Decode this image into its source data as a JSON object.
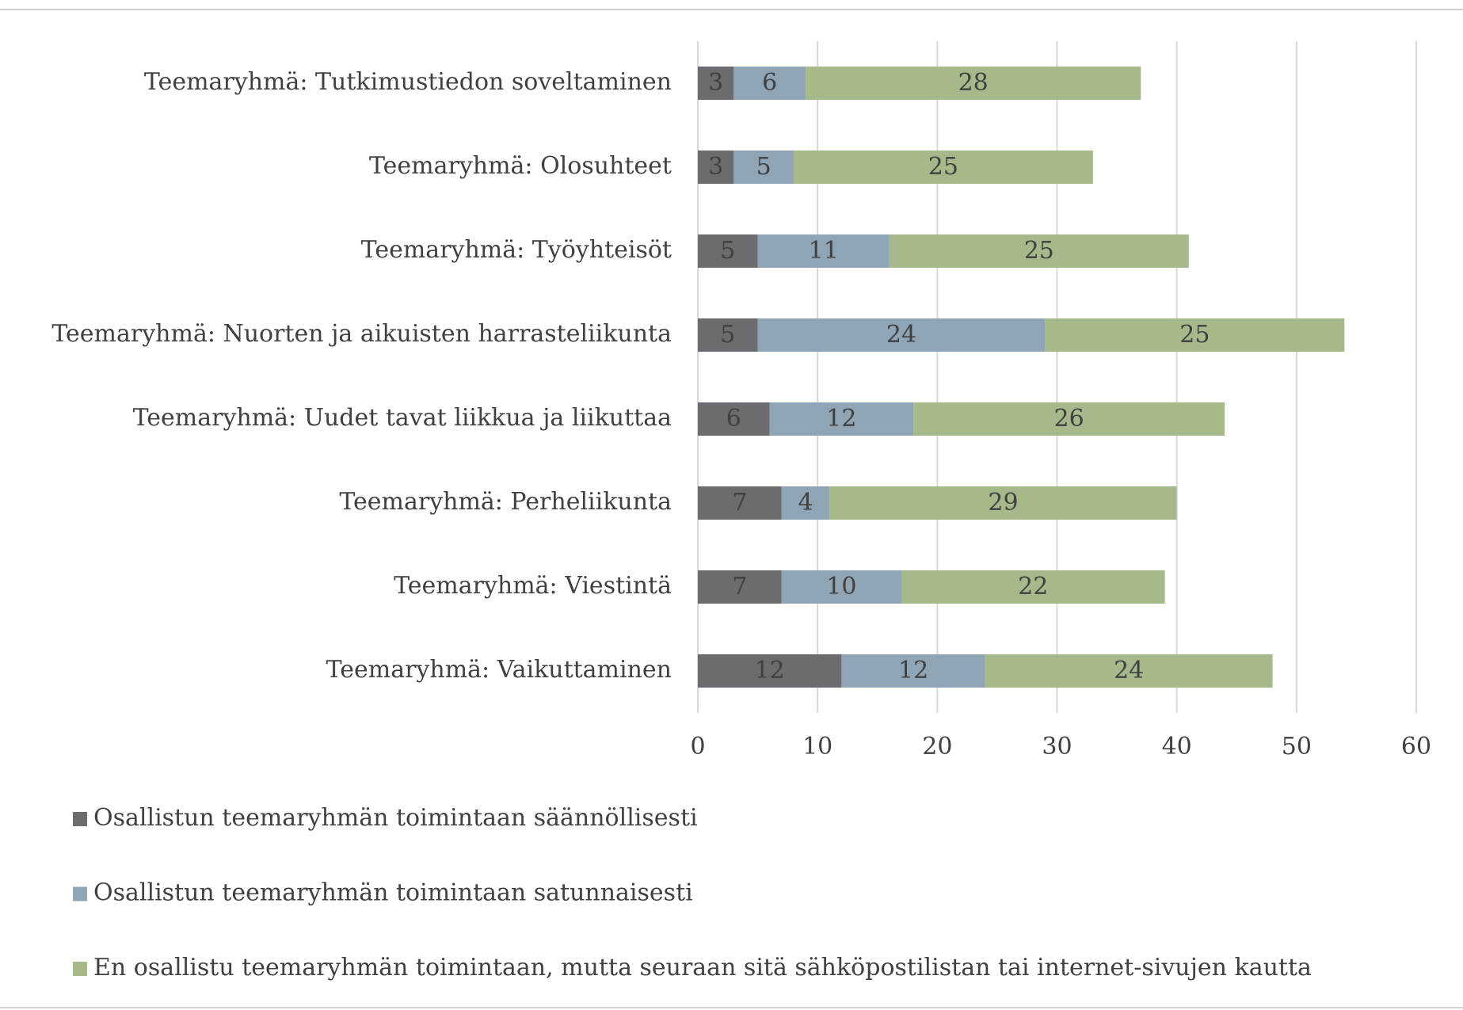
{
  "chart_data": {
    "type": "bar",
    "orientation": "horizontal",
    "stacked": true,
    "categories": [
      "Teemaryhmä: Tutkimustiedon soveltaminen",
      "Teemaryhmä: Olosuhteet",
      "Teemaryhmä: Työyhteisöt",
      "Teemaryhmä: Nuorten ja aikuisten harrasteliikunta",
      "Teemaryhmä: Uudet tavat liikkua ja liikuttaa",
      "Teemaryhmä: Perheliikunta",
      "Teemaryhmä: Viestintä",
      "Teemaryhmä: Vaikuttaminen"
    ],
    "series": [
      {
        "name": "Osallistun teemaryhmän toimintaan säännöllisesti",
        "color": "#6b6b70",
        "values": [
          3,
          3,
          5,
          5,
          6,
          7,
          7,
          12
        ]
      },
      {
        "name": "Osallistun teemaryhmän toimintaan satunnaisesti",
        "color": "#8fa5b5",
        "values": [
          6,
          5,
          11,
          24,
          12,
          4,
          10,
          12
        ]
      },
      {
        "name": "En osallistu teemaryhmän toimintaan, mutta seuraan sitä sähköpostilistan tai internet-sivujen kautta",
        "color": "#a6b98a",
        "values": [
          28,
          25,
          25,
          25,
          26,
          29,
          22,
          24
        ]
      }
    ],
    "xlim": [
      0,
      60
    ],
    "xticks": [
      0,
      10,
      20,
      30,
      40,
      50,
      60
    ],
    "grid": true,
    "legend": "bottom"
  }
}
